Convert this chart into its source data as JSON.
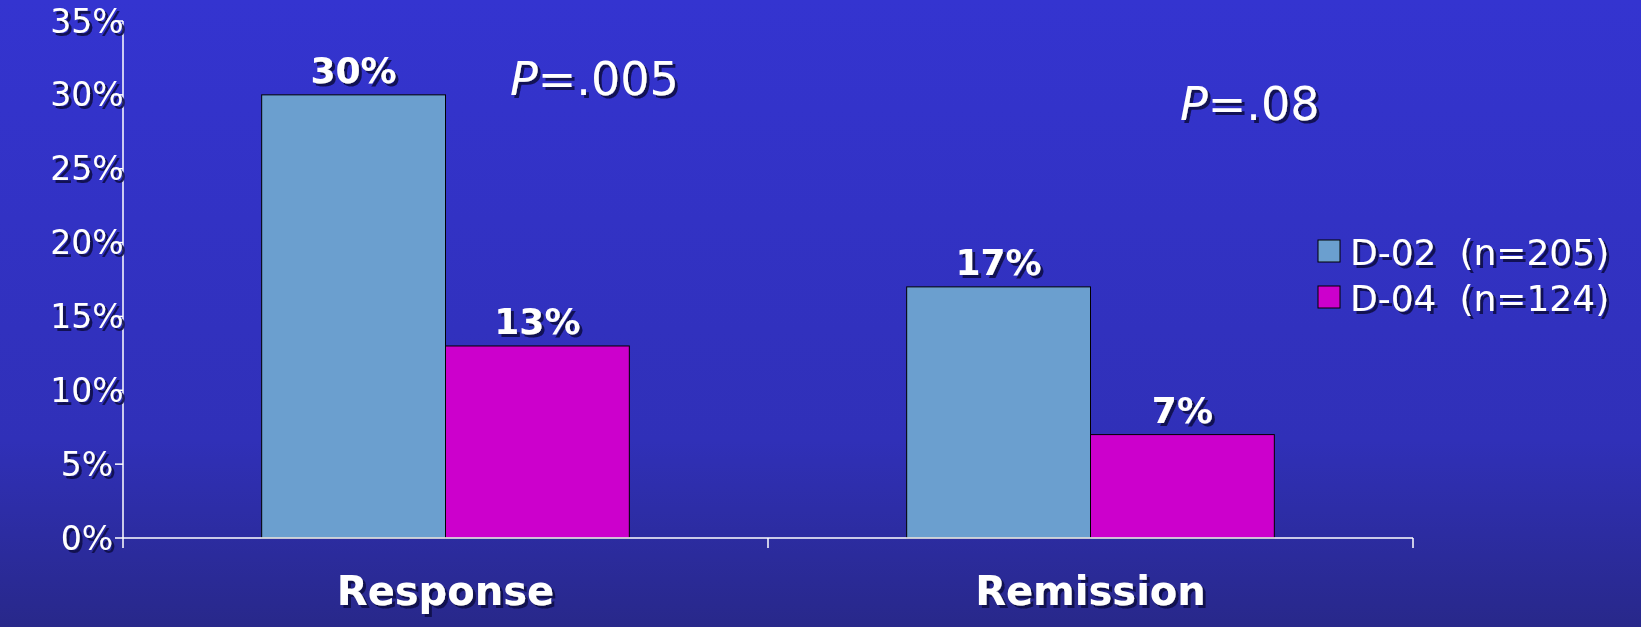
{
  "chart_data": {
    "type": "bar",
    "categories": [
      "Response",
      "Remission"
    ],
    "series": [
      {
        "name": "D-02  (n=205)",
        "color": "#6b9fcf",
        "values": [
          30,
          17
        ],
        "value_labels": [
          "30%",
          "17%"
        ]
      },
      {
        "name": "D-04  (n=124)",
        "color": "#cc00cc",
        "values": [
          13,
          7
        ],
        "value_labels": [
          "13%",
          "7%"
        ]
      }
    ],
    "ylim": [
      0,
      35
    ],
    "yticks": [
      {
        "value": 0,
        "label": "0%"
      },
      {
        "value": 5,
        "label": "5%"
      },
      {
        "value": 10,
        "label": "10%"
      },
      {
        "value": 15,
        "label": "15%"
      },
      {
        "value": 20,
        "label": "20%"
      },
      {
        "value": 25,
        "label": "25%"
      },
      {
        "value": 30,
        "label": "30%"
      },
      {
        "value": 35,
        "label": "35%"
      }
    ],
    "annotations": [
      "P=.005",
      "P=.08"
    ],
    "legend": "right",
    "grid": false
  }
}
